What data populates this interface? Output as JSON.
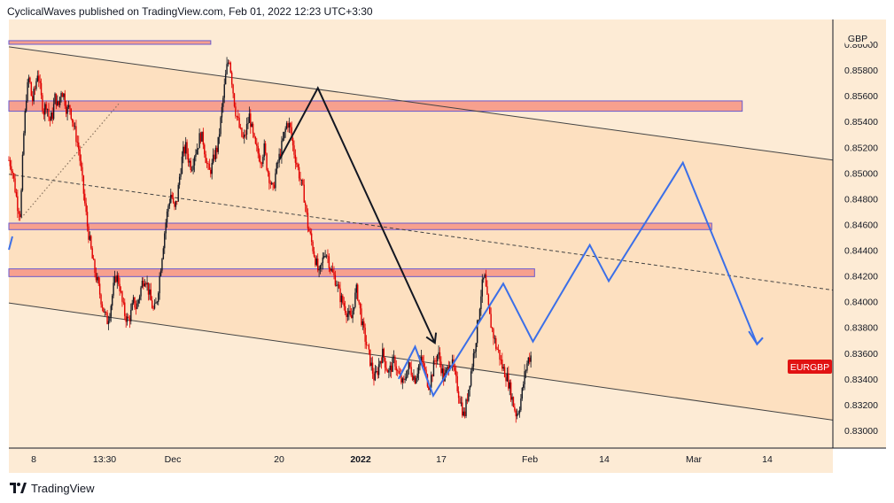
{
  "header": {
    "text": "CyclicalWaves published on TradingView.com, Feb 01, 2022 12:23 UTC+3:30"
  },
  "footer": {
    "brand": "TradingView"
  },
  "colors": {
    "band": "#fde0c0",
    "candle_up": "#131722",
    "candle_down": "#e00000",
    "zone_fill": "#f7a08e",
    "zone_border": "#6a5acd",
    "projection": "#3b6fe8",
    "arrow": "#131722",
    "channel": "#444444",
    "badge": "#e11212"
  },
  "chart_data": {
    "type": "candlestick",
    "symbol_badge": "EURGBP",
    "currency": "GBP",
    "y_ticks": [
      "0.86000",
      "0.85800",
      "0.85600",
      "0.85400",
      "0.85200",
      "0.85000",
      "0.84800",
      "0.84600",
      "0.84400",
      "0.84200",
      "0.84000",
      "0.83800",
      "0.83600",
      "0.83400",
      "0.83200",
      "0.83000"
    ],
    "x_ticks": [
      {
        "label": "8",
        "bold": false
      },
      {
        "label": "13:30",
        "bold": false
      },
      {
        "label": "Dec",
        "bold": false
      },
      {
        "label": "20",
        "bold": false
      },
      {
        "label": "2022",
        "bold": true
      },
      {
        "label": "17",
        "bold": false
      },
      {
        "label": "Feb",
        "bold": false
      },
      {
        "label": "14",
        "bold": false
      },
      {
        "label": "Mar",
        "bold": false
      },
      {
        "label": "14",
        "bold": false
      }
    ],
    "price_path": [
      0.851,
      0.8505,
      0.849,
      0.8475,
      0.8468,
      0.8525,
      0.856,
      0.8575,
      0.8555,
      0.8565,
      0.858,
      0.856,
      0.8548,
      0.8555,
      0.854,
      0.8545,
      0.856,
      0.855,
      0.8565,
      0.856,
      0.8548,
      0.8552,
      0.854,
      0.853,
      0.852,
      0.85,
      0.848,
      0.846,
      0.8445,
      0.843,
      0.842,
      0.841,
      0.84,
      0.839,
      0.8385,
      0.8395,
      0.841,
      0.842,
      0.8415,
      0.84,
      0.839,
      0.8385,
      0.839,
      0.84,
      0.8395,
      0.8405,
      0.8415,
      0.842,
      0.841,
      0.84,
      0.8392,
      0.84,
      0.842,
      0.844,
      0.846,
      0.8475,
      0.8485,
      0.847,
      0.848,
      0.85,
      0.8515,
      0.852,
      0.851,
      0.8505,
      0.8515,
      0.852,
      0.853,
      0.8525,
      0.851,
      0.85,
      0.8505,
      0.8515,
      0.852,
      0.854,
      0.856,
      0.858,
      0.859,
      0.857,
      0.855,
      0.854,
      0.853,
      0.8525,
      0.8535,
      0.8545,
      0.853,
      0.852,
      0.8515,
      0.851,
      0.852,
      0.8505,
      0.8495,
      0.8485,
      0.85,
      0.851,
      0.852,
      0.853,
      0.854,
      0.8535,
      0.852,
      0.851,
      0.85,
      0.849,
      0.848,
      0.846,
      0.845,
      0.844,
      0.843,
      0.842,
      0.843,
      0.844,
      0.8435,
      0.8425,
      0.842,
      0.8415,
      0.8405,
      0.84,
      0.8395,
      0.839,
      0.8385,
      0.84,
      0.841,
      0.8395,
      0.838,
      0.837,
      0.836,
      0.835,
      0.834,
      0.8345,
      0.8355,
      0.836,
      0.835,
      0.8345,
      0.835,
      0.8355,
      0.8345,
      0.834,
      0.8335,
      0.8345,
      0.835,
      0.8345,
      0.834,
      0.8348,
      0.8355,
      0.835,
      0.834,
      0.8335,
      0.8345,
      0.8355,
      0.836,
      0.835,
      0.834,
      0.8345,
      0.8355,
      0.835,
      0.834,
      0.833,
      0.832,
      0.831,
      0.8325,
      0.834,
      0.8355,
      0.837,
      0.839,
      0.841,
      0.842,
      0.84,
      0.8385,
      0.8375,
      0.8365,
      0.836,
      0.835,
      0.8345,
      0.834,
      0.833,
      0.832,
      0.8312,
      0.8318,
      0.833,
      0.8345,
      0.8355,
      0.8358
    ],
    "zones": [
      {
        "name": "top-zone",
        "p_hi": 0.86028,
        "p_lo": 0.86,
        "t_start": 0,
        "t_end": 0.245
      },
      {
        "name": "upper-zone",
        "p_hi": 0.8556,
        "p_lo": 0.8548,
        "t_start": 0,
        "t_end": 0.89
      },
      {
        "name": "middle-zone",
        "p_hi": 0.8461,
        "p_lo": 0.8456,
        "t_start": 0,
        "t_end": 0.853
      },
      {
        "name": "lower-zone",
        "p_hi": 0.84255,
        "p_lo": 0.84195,
        "t_start": 0,
        "t_end": 0.638
      }
    ],
    "channel_upper": [
      {
        "t": 0,
        "p": 0.8598
      },
      {
        "t": 1,
        "p": 0.851
      }
    ],
    "channel_lower": [
      {
        "t": 0,
        "p": 0.8399
      },
      {
        "t": 1,
        "p": 0.8308
      }
    ],
    "channel_mid": [
      {
        "t": 0,
        "p": 0.8499
      },
      {
        "t": 1,
        "p": 0.8409
      }
    ],
    "dotted_trend": [
      {
        "t": 0.015,
        "p": 0.8465
      },
      {
        "t": 0.135,
        "p": 0.8555
      }
    ],
    "black_arrow": [
      {
        "t": 0.328,
        "p": 0.851
      },
      {
        "t": 0.375,
        "p": 0.8566
      },
      {
        "t": 0.517,
        "p": 0.8368
      }
    ],
    "projection_path": [
      {
        "t": 0.473,
        "p": 0.834
      },
      {
        "t": 0.493,
        "p": 0.8365
      },
      {
        "t": 0.515,
        "p": 0.8327
      },
      {
        "t": 0.6,
        "p": 0.8414
      },
      {
        "t": 0.636,
        "p": 0.8369
      },
      {
        "t": 0.705,
        "p": 0.8444
      },
      {
        "t": 0.728,
        "p": 0.8416
      },
      {
        "t": 0.818,
        "p": 0.8508
      },
      {
        "t": 0.908,
        "p": 0.8367
      },
      {
        "t": 0.915,
        "p": 0.8372
      }
    ],
    "projection_arrowhead": [
      {
        "t": 0.898,
        "p": 0.8377
      },
      {
        "t": 0.908,
        "p": 0.8367
      },
      {
        "t": 0.915,
        "p": 0.8372
      }
    ]
  }
}
